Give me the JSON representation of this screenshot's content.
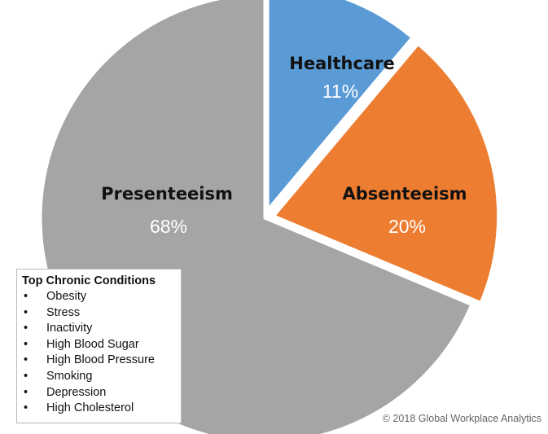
{
  "chart_data": {
    "type": "pie",
    "slices": [
      {
        "label": "Healthcare",
        "value": 11,
        "display": "11%",
        "color": "#5b9bd5",
        "exploded": true
      },
      {
        "label": "Absenteeism",
        "value": 20,
        "display": "20%",
        "color": "#ed7d31",
        "exploded": true
      },
      {
        "label": "Presenteeism",
        "value": 68,
        "display": "68%",
        "color": "#a5a5a5",
        "exploded": false
      }
    ],
    "start_angle_deg": 0,
    "direction": "clockwise",
    "label_colors": {
      "name": "#111111",
      "percent": "#ffffff"
    }
  },
  "legend_box": {
    "title": "Top Chronic Conditions",
    "bullet_symbol": "•",
    "items": [
      "Obesity",
      "Stress",
      "Inactivity",
      "High Blood Sugar",
      "High Blood Pressure",
      "Smoking",
      "Depression",
      "High Cholesterol"
    ]
  },
  "footer": {
    "copyright": "© 2018 Global Workplace Analytics"
  }
}
